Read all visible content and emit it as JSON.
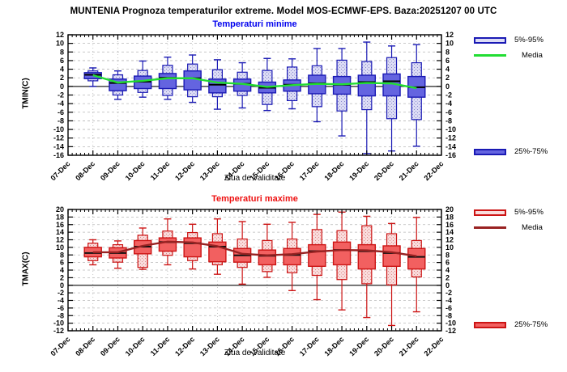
{
  "window": {
    "title": "MUNTENIA  Prognoza temperaturilor extreme.  Model MOS-ECMWF-EPS. Baza:20251207 00 UTC"
  },
  "chart_data": [
    {
      "type": "boxplot",
      "title": "Temperaturi minime",
      "ylabel": "TMIN(C)",
      "xlabel": "Ziua de validitate",
      "ylim": [
        -16,
        12
      ],
      "ytick_step": 2,
      "grid": true,
      "legend": [
        "5%-95%",
        "Media",
        "25%-75%"
      ],
      "legend_position": "right",
      "colors": {
        "title": "#0000ee",
        "box_fill": "#6464e0",
        "box_edge": "#1a1ab4",
        "range_fill": "#dcdcf5",
        "dot": "#8888cc",
        "mean_line": "#22dd33",
        "median": "#000000"
      },
      "categories": [
        "07-Dec",
        "08-Dec",
        "09-Dec",
        "10-Dec",
        "11-Dec",
        "12-Dec",
        "13-Dec",
        "14-Dec",
        "15-Dec",
        "16-Dec",
        "17-Dec",
        "18-Dec",
        "19-Dec",
        "20-Dec",
        "21-Dec",
        "22-Dec"
      ],
      "boxes": [
        {
          "day": "08-Dec",
          "lo": 0.0,
          "p5": 1.3,
          "p25": 1.8,
          "median": 2.7,
          "p75": 3.2,
          "p95": 3.6,
          "hi": 4.3,
          "mean": 2.6
        },
        {
          "day": "09-Dec",
          "lo": -3.0,
          "p5": -2.0,
          "p25": -1.0,
          "median": 0.8,
          "p75": 1.7,
          "p95": 2.7,
          "hi": 3.6,
          "mean": 0.9
        },
        {
          "day": "10-Dec",
          "lo": -2.5,
          "p5": -1.4,
          "p25": -0.5,
          "median": 1.1,
          "p75": 2.4,
          "p95": 3.7,
          "hi": 5.9,
          "mean": 1.3
        },
        {
          "day": "11-Dec",
          "lo": -3.0,
          "p5": -2.1,
          "p25": -0.5,
          "median": 2.0,
          "p75": 3.0,
          "p95": 4.9,
          "hi": 6.8,
          "mean": 1.9
        },
        {
          "day": "12-Dec",
          "lo": -3.7,
          "p5": -2.4,
          "p25": -0.8,
          "median": 1.9,
          "p75": 3.6,
          "p95": 5.2,
          "hi": 7.3,
          "mean": 1.9
        },
        {
          "day": "13-Dec",
          "lo": -5.3,
          "p5": -2.4,
          "p25": -1.5,
          "median": 0.4,
          "p75": 1.7,
          "p95": 3.9,
          "hi": 6.2,
          "mean": 0.9
        },
        {
          "day": "14-Dec",
          "lo": -5.0,
          "p5": -2.1,
          "p25": -1.1,
          "median": 0.6,
          "p75": 1.7,
          "p95": 3.3,
          "hi": 5.5,
          "mean": 0.6
        },
        {
          "day": "15-Dec",
          "lo": -5.6,
          "p5": -4.2,
          "p25": -1.5,
          "median": -0.3,
          "p75": 1.0,
          "p95": 3.7,
          "hi": 6.5,
          "mean": -0.1
        },
        {
          "day": "16-Dec",
          "lo": -5.2,
          "p5": -3.3,
          "p25": -1.1,
          "median": 0.4,
          "p75": 1.5,
          "p95": 4.5,
          "hi": 6.4,
          "mean": 0.3
        },
        {
          "day": "17-Dec",
          "lo": -8.2,
          "p5": -4.7,
          "p25": -1.7,
          "median": 0.7,
          "p75": 2.6,
          "p95": 4.8,
          "hi": 8.8,
          "mean": 0.6
        },
        {
          "day": "18-Dec",
          "lo": -11.5,
          "p5": -5.7,
          "p25": -1.8,
          "median": 0.4,
          "p75": 2.3,
          "p95": 6.1,
          "hi": 8.8,
          "mean": 0.5
        },
        {
          "day": "19-Dec",
          "lo": -15.6,
          "p5": -5.4,
          "p25": -2.2,
          "median": 1.0,
          "p75": 2.6,
          "p95": 5.8,
          "hi": 10.3,
          "mean": 0.8
        },
        {
          "day": "20-Dec",
          "lo": -15.0,
          "p5": -7.5,
          "p25": -2.2,
          "median": 1.2,
          "p75": 2.9,
          "p95": 6.7,
          "hi": 9.4,
          "mean": 0.7
        },
        {
          "day": "21-Dec",
          "lo": -13.9,
          "p5": -7.7,
          "p25": -2.5,
          "median": -0.2,
          "p75": 2.3,
          "p95": 5.5,
          "hi": 9.7,
          "mean": -0.4
        }
      ]
    },
    {
      "type": "boxplot",
      "title": "Temperaturi maxime",
      "ylabel": "TMAX(C)",
      "xlabel": "Ziua de validitate",
      "ylim": [
        -12,
        20
      ],
      "ytick_step": 2,
      "grid": true,
      "legend": [
        "5%-95%",
        "Media",
        "25%-75%"
      ],
      "legend_position": "right",
      "colors": {
        "title": "#ee1111",
        "box_fill": "#f26060",
        "box_edge": "#cc1414",
        "range_fill": "#f9dcdc",
        "dot": "#dd8888",
        "mean_line": "#992222",
        "median": "#111111"
      },
      "categories": [
        "07-Dec",
        "08-Dec",
        "09-Dec",
        "10-Dec",
        "11-Dec",
        "12-Dec",
        "13-Dec",
        "14-Dec",
        "15-Dec",
        "16-Dec",
        "17-Dec",
        "18-Dec",
        "19-Dec",
        "20-Dec",
        "21-Dec",
        "22-Dec"
      ],
      "boxes": [
        {
          "day": "08-Dec",
          "lo": 5.4,
          "p5": 6.5,
          "p25": 7.5,
          "median": 8.5,
          "p75": 10.0,
          "p95": 11.1,
          "hi": 12.0,
          "mean": 8.7
        },
        {
          "day": "09-Dec",
          "lo": 4.5,
          "p5": 6.1,
          "p25": 7.2,
          "median": 8.5,
          "p75": 9.9,
          "p95": 10.7,
          "hi": 11.7,
          "mean": 8.7
        },
        {
          "day": "10-Dec",
          "lo": 4.2,
          "p5": 4.7,
          "p25": 8.3,
          "median": 10.2,
          "p75": 11.8,
          "p95": 13.2,
          "hi": 15.1,
          "mean": 10.4
        },
        {
          "day": "11-Dec",
          "lo": 5.4,
          "p5": 7.9,
          "p25": 9.0,
          "median": 11.4,
          "p75": 12.5,
          "p95": 14.3,
          "hi": 17.5,
          "mean": 11.5
        },
        {
          "day": "12-Dec",
          "lo": 4.3,
          "p5": 6.5,
          "p25": 7.5,
          "median": 11.1,
          "p75": 12.5,
          "p95": 13.9,
          "hi": 16.1,
          "mean": 11.3
        },
        {
          "day": "13-Dec",
          "lo": 2.9,
          "p5": 5.4,
          "p25": 6.2,
          "median": 10.2,
          "p75": 11.4,
          "p95": 13.6,
          "hi": 17.5,
          "mean": 10.3
        },
        {
          "day": "14-Dec",
          "lo": 0.3,
          "p5": 4.7,
          "p25": 6.1,
          "median": 7.9,
          "p75": 9.7,
          "p95": 12.2,
          "hi": 16.8,
          "mean": 8.3
        },
        {
          "day": "15-Dec",
          "lo": 2.1,
          "p5": 3.6,
          "p25": 5.4,
          "median": 7.8,
          "p75": 9.3,
          "p95": 11.8,
          "hi": 16.1,
          "mean": 7.9
        },
        {
          "day": "16-Dec",
          "lo": -1.4,
          "p5": 3.3,
          "p25": 5.4,
          "median": 8.0,
          "p75": 9.7,
          "p95": 12.2,
          "hi": 16.6,
          "mean": 8.2
        },
        {
          "day": "17-Dec",
          "lo": -3.8,
          "p5": 2.6,
          "p25": 5.0,
          "median": 9.0,
          "p75": 10.7,
          "p95": 14.7,
          "hi": 18.7,
          "mean": 8.9
        },
        {
          "day": "18-Dec",
          "lo": -6.5,
          "p5": 1.5,
          "p25": 5.4,
          "median": 9.3,
          "p75": 11.4,
          "p95": 14.4,
          "hi": 19.3,
          "mean": 9.3
        },
        {
          "day": "19-Dec",
          "lo": -8.5,
          "p5": 0.4,
          "p25": 4.3,
          "median": 9.0,
          "p75": 10.7,
          "p95": 15.7,
          "hi": 18.2,
          "mean": 9.2
        },
        {
          "day": "20-Dec",
          "lo": -10.6,
          "p5": 0.1,
          "p25": 5.0,
          "median": 8.5,
          "p75": 10.4,
          "p95": 13.6,
          "hi": 16.3,
          "mean": 8.7
        },
        {
          "day": "21-Dec",
          "lo": -7.0,
          "p5": 2.2,
          "p25": 4.3,
          "median": 7.5,
          "p75": 9.7,
          "p95": 11.8,
          "hi": 17.9,
          "mean": 7.7
        }
      ]
    }
  ]
}
